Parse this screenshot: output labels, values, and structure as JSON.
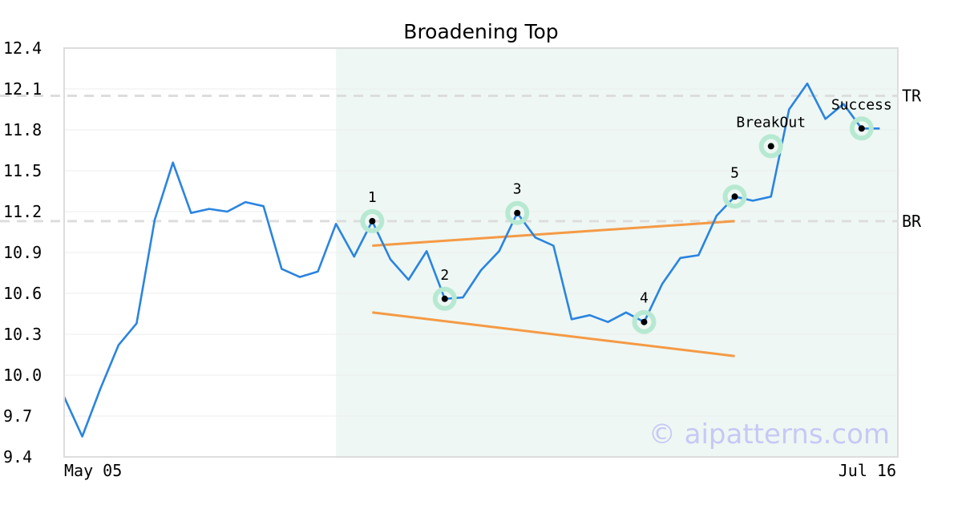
{
  "chart_data": {
    "type": "line",
    "title": "Broadening Top",
    "xlabel": "",
    "ylabel": "",
    "ylim": [
      9.4,
      12.4
    ],
    "y_ticks": [
      "12.4",
      "12.1",
      "11.8",
      "11.5",
      "11.2",
      "10.9",
      "10.6",
      "10.3",
      "10.0",
      "9.7",
      "9.4"
    ],
    "x_tick_labels": [
      "May 05",
      "Jul 16"
    ],
    "grid": "horizontal",
    "colors": {
      "line": "#2a84e0",
      "trendline": "#f59a45",
      "shade": "#eef7f3",
      "marker_ring": "#b7e9d2",
      "level_dash": "#dddddd",
      "axis": "#dddddd",
      "grid": "#ececec"
    },
    "series": [
      {
        "values": [
          9.84,
          9.55,
          9.9,
          10.22,
          10.38,
          11.14,
          11.56,
          11.19,
          11.22,
          11.2,
          11.27,
          11.24,
          10.78,
          10.72,
          10.76,
          11.11,
          10.87,
          11.13,
          10.85,
          10.7,
          10.91,
          10.56,
          10.57,
          10.77,
          10.91,
          11.19,
          11.01,
          10.95,
          10.41,
          10.44,
          10.39,
          10.46,
          10.39,
          10.67,
          10.86,
          10.88,
          11.17,
          11.31,
          11.28,
          11.31,
          11.95,
          12.14,
          11.88,
          11.99,
          11.81,
          11.81
        ]
      }
    ],
    "shaded_region": {
      "start_index": 15,
      "end_index": 46
    },
    "levels": [
      {
        "label": "TR",
        "value": 12.05
      },
      {
        "label": "BR",
        "value": 11.13
      }
    ],
    "pattern_points": [
      {
        "label": "1",
        "index": 17,
        "value": 11.13
      },
      {
        "label": "2",
        "index": 21,
        "value": 10.56
      },
      {
        "label": "3",
        "index": 25,
        "value": 11.19
      },
      {
        "label": "4",
        "index": 32,
        "value": 10.39
      },
      {
        "label": "5",
        "index": 37,
        "value": 11.31
      }
    ],
    "annotations": [
      {
        "label": "BreakOut",
        "index": 39,
        "value": 11.68
      },
      {
        "label": "Success",
        "index": 44,
        "value": 11.81
      }
    ],
    "trendlines": [
      {
        "from": {
          "index": 17,
          "value": 10.95
        },
        "to": {
          "index": 37,
          "value": 11.13
        }
      },
      {
        "from": {
          "index": 17,
          "value": 10.46
        },
        "to": {
          "index": 37,
          "value": 10.14
        }
      }
    ]
  },
  "watermark": "© aipatterns.com"
}
